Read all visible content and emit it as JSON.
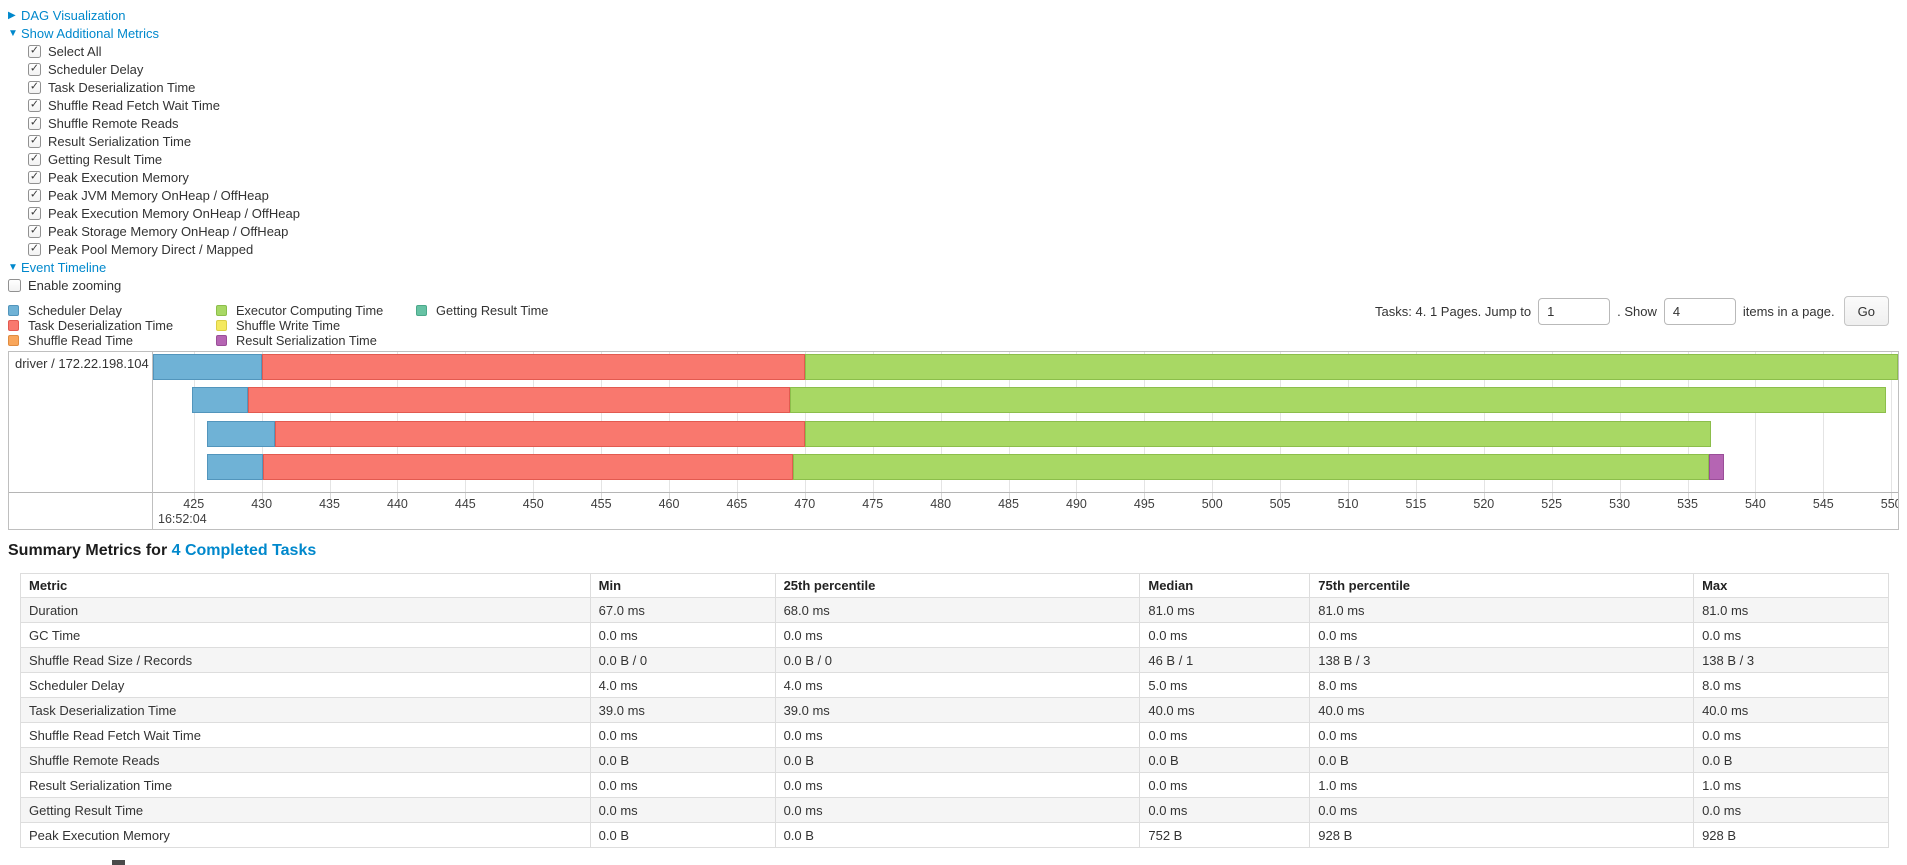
{
  "sections": {
    "dag": "DAG Visualization",
    "additional_metrics": "Show Additional Metrics",
    "event_timeline": "Event Timeline"
  },
  "metrics_panel": {
    "items": [
      "Select All",
      "Scheduler Delay",
      "Task Deserialization Time",
      "Shuffle Read Fetch Wait Time",
      "Shuffle Remote Reads",
      "Result Serialization Time",
      "Getting Result Time",
      "Peak Execution Memory",
      "Peak JVM Memory OnHeap / OffHeap",
      "Peak Execution Memory OnHeap / OffHeap",
      "Peak Storage Memory OnHeap / OffHeap",
      "Peak Pool Memory Direct / Mapped"
    ],
    "all_checked": true
  },
  "enable_zooming": {
    "label": "Enable zooming",
    "checked": false
  },
  "pagination": {
    "summary_label": "Tasks: 4. 1 Pages. Jump to",
    "jump_value": "1",
    "show_label": ". Show",
    "show_value": "4",
    "items_label": "items in a page.",
    "go_label": "Go"
  },
  "colors": {
    "scheduler_delay": {
      "fill": "#6FB2D6",
      "border": "#5295BC"
    },
    "task_deserialization": {
      "fill": "#F9786E",
      "border": "#E25A50"
    },
    "shuffle_read": {
      "fill": "#F9A65B",
      "border": "#E08C41"
    },
    "executor_computing": {
      "fill": "#A8D864",
      "border": "#8CBE4B"
    },
    "shuffle_write": {
      "fill": "#F4E95F",
      "border": "#DBCE45"
    },
    "result_serialization": {
      "fill": "#B565B3",
      "border": "#9A4E98"
    },
    "getting_result": {
      "fill": "#66C2A4",
      "border": "#4BA88A"
    },
    "link": "#0088cc"
  },
  "legend": {
    "columns": [
      [
        {
          "type": "scheduler_delay",
          "label": "Scheduler Delay"
        },
        {
          "type": "task_deserialization",
          "label": "Task Deserialization Time"
        },
        {
          "type": "shuffle_read",
          "label": "Shuffle Read Time"
        }
      ],
      [
        {
          "type": "executor_computing",
          "label": "Executor Computing Time"
        },
        {
          "type": "shuffle_write",
          "label": "Shuffle Write Time"
        },
        {
          "type": "result_serialization",
          "label": "Result Serialization Time"
        }
      ],
      [
        {
          "type": "getting_result",
          "label": "Getting Result Time"
        }
      ]
    ]
  },
  "chart_data": {
    "type": "timeline",
    "executor_label": "driver / 172.22.198.104",
    "axis": {
      "unit": "ms within second",
      "start": 422.0,
      "end": 550.5,
      "tick_start": 425,
      "tick_end": 550,
      "tick_step": 5,
      "major_label": "16:52:04"
    },
    "tasks": [
      {
        "segments": [
          {
            "type": "scheduler_delay",
            "start": 422.0,
            "end": 430.0
          },
          {
            "type": "task_deserialization",
            "start": 430.0,
            "end": 470.0
          },
          {
            "type": "executor_computing",
            "start": 470.0,
            "end": 550.5
          }
        ]
      },
      {
        "segments": [
          {
            "type": "scheduler_delay",
            "start": 424.9,
            "end": 429.0
          },
          {
            "type": "task_deserialization",
            "start": 429.0,
            "end": 468.9
          },
          {
            "type": "executor_computing",
            "start": 468.9,
            "end": 549.6
          }
        ]
      },
      {
        "segments": [
          {
            "type": "scheduler_delay",
            "start": 426.0,
            "end": 431.0
          },
          {
            "type": "task_deserialization",
            "start": 431.0,
            "end": 470.0
          },
          {
            "type": "executor_computing",
            "start": 470.0,
            "end": 536.7
          }
        ]
      },
      {
        "segments": [
          {
            "type": "scheduler_delay",
            "start": 426.0,
            "end": 430.1
          },
          {
            "type": "task_deserialization",
            "start": 430.1,
            "end": 469.1
          },
          {
            "type": "executor_computing",
            "start": 469.1,
            "end": 536.6
          },
          {
            "type": "result_serialization",
            "start": 536.6,
            "end": 537.7
          }
        ]
      }
    ]
  },
  "summary": {
    "title_prefix": "Summary Metrics for ",
    "title_link": "4 Completed Tasks",
    "columns": [
      "Metric",
      "Min",
      "25th percentile",
      "Median",
      "75th percentile",
      "Max"
    ],
    "rows": [
      {
        "metric": "Duration",
        "values": [
          "67.0 ms",
          "68.0 ms",
          "81.0 ms",
          "81.0 ms",
          "81.0 ms"
        ]
      },
      {
        "metric": "GC Time",
        "values": [
          "0.0 ms",
          "0.0 ms",
          "0.0 ms",
          "0.0 ms",
          "0.0 ms"
        ]
      },
      {
        "metric": "Shuffle Read Size / Records",
        "values": [
          "0.0 B / 0",
          "0.0 B / 0",
          "46 B / 1",
          "138 B / 3",
          "138 B / 3"
        ]
      },
      {
        "metric": "Scheduler Delay",
        "values": [
          "4.0 ms",
          "4.0 ms",
          "5.0 ms",
          "8.0 ms",
          "8.0 ms"
        ]
      },
      {
        "metric": "Task Deserialization Time",
        "values": [
          "39.0 ms",
          "39.0 ms",
          "40.0 ms",
          "40.0 ms",
          "40.0 ms"
        ]
      },
      {
        "metric": "Shuffle Read Fetch Wait Time",
        "values": [
          "0.0 ms",
          "0.0 ms",
          "0.0 ms",
          "0.0 ms",
          "0.0 ms"
        ]
      },
      {
        "metric": "Shuffle Remote Reads",
        "values": [
          "0.0 B",
          "0.0 B",
          "0.0 B",
          "0.0 B",
          "0.0 B"
        ]
      },
      {
        "metric": "Result Serialization Time",
        "values": [
          "0.0 ms",
          "0.0 ms",
          "0.0 ms",
          "1.0 ms",
          "1.0 ms"
        ]
      },
      {
        "metric": "Getting Result Time",
        "values": [
          "0.0 ms",
          "0.0 ms",
          "0.0 ms",
          "0.0 ms",
          "0.0 ms"
        ]
      },
      {
        "metric": "Peak Execution Memory",
        "values": [
          "0.0 B",
          "0.0 B",
          "752 B",
          "928 B",
          "928 B"
        ]
      }
    ]
  }
}
